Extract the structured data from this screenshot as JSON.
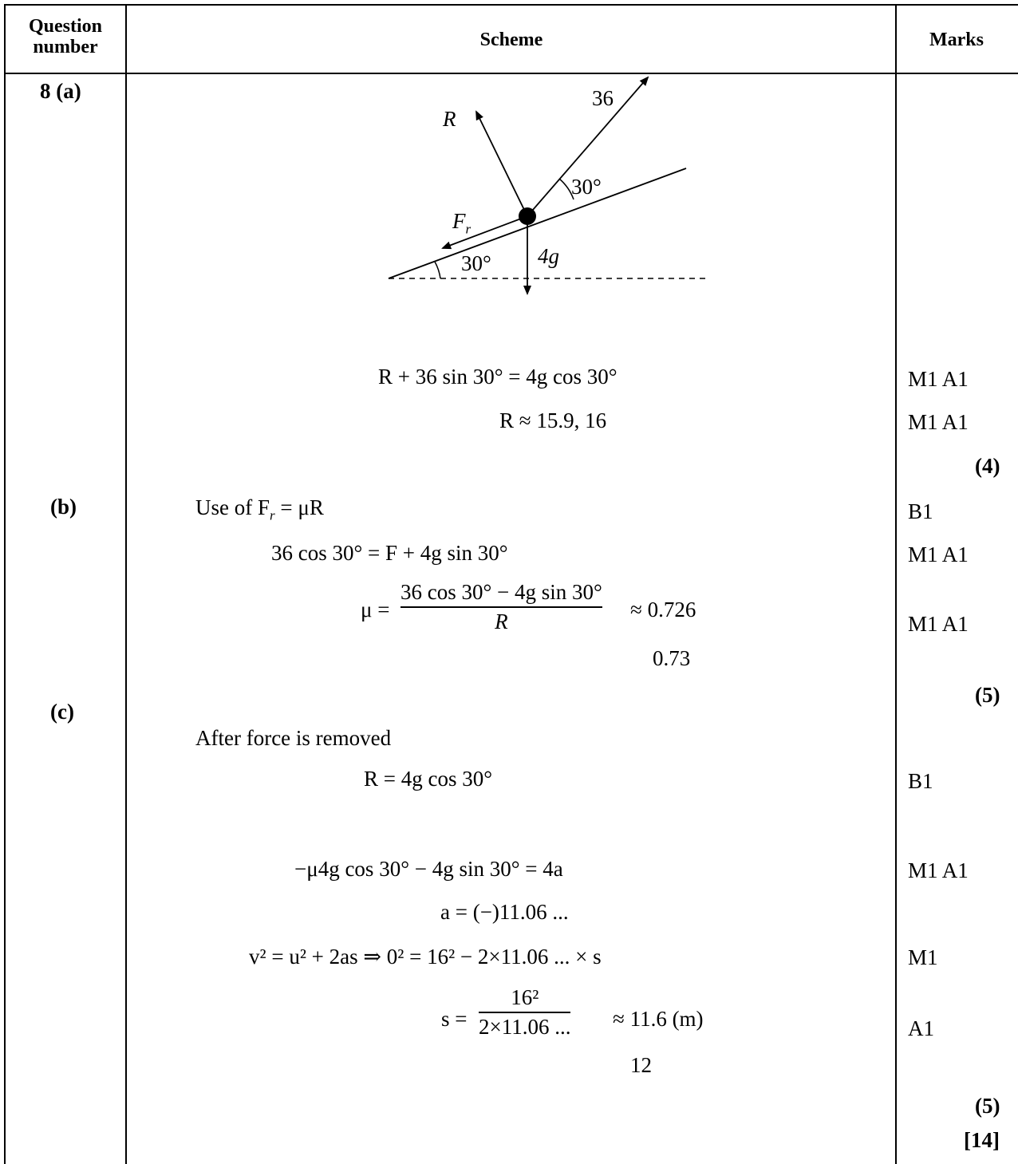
{
  "header": {
    "col1_line1": "Question",
    "col1_line2": "number",
    "col2": "Scheme",
    "col3": "Marks"
  },
  "parts": {
    "a": "8 (a)",
    "b": "(b)",
    "c": "(c)"
  },
  "diagram": {
    "force_36": "36",
    "force_R": "R",
    "force_Fr": "F",
    "force_Fr_sub": "r",
    "force_weight": "4g",
    "angle_top": "30°",
    "angle_bottom": "30°"
  },
  "part_a": {
    "line1": "R + 36 sin 30° = 4g cos 30°",
    "line2": "R ≈ 15.9, 16",
    "marks1": "M1 A1",
    "marks2": "M1 A1",
    "total": "(4)"
  },
  "part_b": {
    "line1": "Use of F",
    "line1_sub": "r",
    "line1_rest": " = μR",
    "line2": "36 cos 30° = F + 4g sin 30°",
    "mu_lhs": "μ =",
    "mu_num": "36 cos 30° − 4g sin 30°",
    "mu_den": "R",
    "mu_rhs": "≈ 0.726",
    "rounded": "0.73",
    "marks1": "B1",
    "marks2": "M1 A1",
    "marks3": "M1 A1",
    "total": "(5)"
  },
  "part_c": {
    "intro": "After force is removed",
    "line1": "R = 4g cos 30°",
    "line2": "−μ4g cos 30° − 4g sin 30° = 4a",
    "line3": "a = (−)11.06 ...",
    "line4": "v² = u² + 2as ⇒ 0² = 16² − 2×11.06 ... × s",
    "s_lhs": "s =",
    "s_num": "16²",
    "s_den": "2×11.06 ...",
    "s_rhs": "≈ 11.6   (m)",
    "rounded": "12",
    "marks1": "B1",
    "marks2": "M1  A1",
    "marks3": "M1",
    "marks4": "A1",
    "total": "(5)",
    "grand_total": "[14]"
  }
}
